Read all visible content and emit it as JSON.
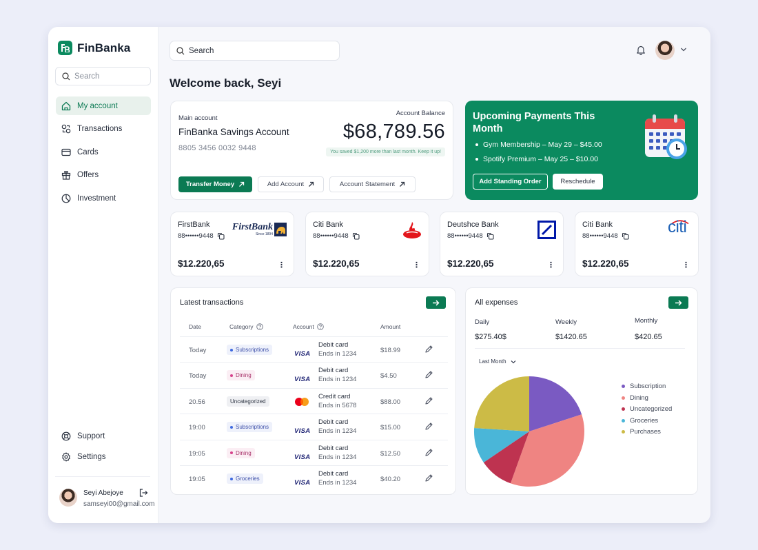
{
  "brand": {
    "name": "FinBanka",
    "color": "#0b8a5f"
  },
  "sidebar": {
    "search_placeholder": "Search",
    "items": [
      {
        "label": "My account",
        "icon": "home-icon",
        "active": true
      },
      {
        "label": "Transactions",
        "icon": "transactions-icon"
      },
      {
        "label": "Cards",
        "icon": "card-icon"
      },
      {
        "label": "Offers",
        "icon": "gift-icon"
      },
      {
        "label": "Investment",
        "icon": "pie-chart-icon"
      }
    ],
    "bottom": [
      {
        "label": "Support",
        "icon": "support-icon"
      },
      {
        "label": "Settings",
        "icon": "gear-icon"
      }
    ],
    "user": {
      "name": "Seyi Abejoye",
      "email": "samseyi00@gmail.com"
    }
  },
  "header": {
    "search_placeholder": "Search",
    "welcome": "Welcome back, Seyi"
  },
  "main_account": {
    "label": "Main account",
    "name": "FinBanka Savings Account",
    "number": "8805 3456 0032 9448",
    "balance_label": "Account Balance",
    "balance": "$68,789.56",
    "saved_note": "You saved $1,200 more than last month. Keep it up!",
    "buttons": {
      "transfer": "Transfer Money",
      "add": "Add Account",
      "statement": "Account Statement"
    }
  },
  "upcoming": {
    "title": "Upcoming Payments This Month",
    "items": [
      "Gym Membership – May 29 – $45.00",
      "Spotify Premium – May 25 – $10.00"
    ],
    "add_button": "Add Standing Order",
    "reschedule_button": "Reschedule"
  },
  "banks": [
    {
      "name": "FirstBank",
      "number": "88••••••9448",
      "amount": "$12.220,65",
      "logo": "firstbank-logo",
      "logo_text": "FirstBank",
      "logo_sub": "Since 1894"
    },
    {
      "name": "Citi Bank",
      "number": "88••••••9448",
      "amount": "$12.220,65",
      "logo": "santander-flame-logo"
    },
    {
      "name": "Deutshce Bank",
      "number": "88••••••9448",
      "amount": "$12.220,65",
      "logo": "deutsche-bank-logo"
    },
    {
      "name": "Citi Bank",
      "number": "88••••••9448",
      "amount": "$12.220,65",
      "logo": "citi-logo",
      "logo_text": "citi"
    }
  ],
  "transactions": {
    "title": "Latest transactions",
    "headers": {
      "date": "Date",
      "category": "Category",
      "account": "Account",
      "amount": "Amount"
    },
    "rows": [
      {
        "date": "Today",
        "category": "Subscriptions",
        "cat_type": "subs",
        "brand": "VISA",
        "acc_type": "Debit card",
        "acc_ends": "Ends in 1234",
        "amount": "$18.99"
      },
      {
        "date": "Today",
        "category": "Dining",
        "cat_type": "dining",
        "brand": "VISA",
        "acc_type": "Debit card",
        "acc_ends": "Ends in 1234",
        "amount": "$4.50"
      },
      {
        "date": "20.56",
        "category": "Uncategorized",
        "cat_type": "uncat",
        "brand": "MASTERCARD",
        "acc_type": "Credit card",
        "acc_ends": "Ends in 5678",
        "amount": "$88.00"
      },
      {
        "date": "19:00",
        "category": "Subscriptions",
        "cat_type": "subs",
        "brand": "VISA",
        "acc_type": "Debit card",
        "acc_ends": "Ends in 1234",
        "amount": "$15.00"
      },
      {
        "date": "19:05",
        "category": "Dining",
        "cat_type": "dining",
        "brand": "VISA",
        "acc_type": "Debit card",
        "acc_ends": "Ends in 1234",
        "amount": "$12.50"
      },
      {
        "date": "19:05",
        "category": "Groceries",
        "cat_type": "subs",
        "brand": "VISA",
        "acc_type": "Debit card",
        "acc_ends": "Ends in 1234",
        "amount": "$40.20"
      }
    ]
  },
  "expenses": {
    "title": "All expenses",
    "daily_label": "Daily",
    "daily": "$275.40$",
    "weekly_label": "Weekly",
    "weekly": "$1420.65",
    "monthly_label": "Monthly",
    "monthly": "$420.65",
    "period": "Last Month",
    "chart_data": {
      "type": "pie",
      "labels": [
        "Subscription",
        "Dining",
        "Uncategorized",
        "Groceries",
        "Purchases"
      ],
      "values": [
        20,
        35.5,
        10,
        10.5,
        24
      ],
      "colors": [
        "#7a5ac2",
        "#ef8482",
        "#be3350",
        "#4ab6d8",
        "#ccbb46"
      ]
    }
  }
}
